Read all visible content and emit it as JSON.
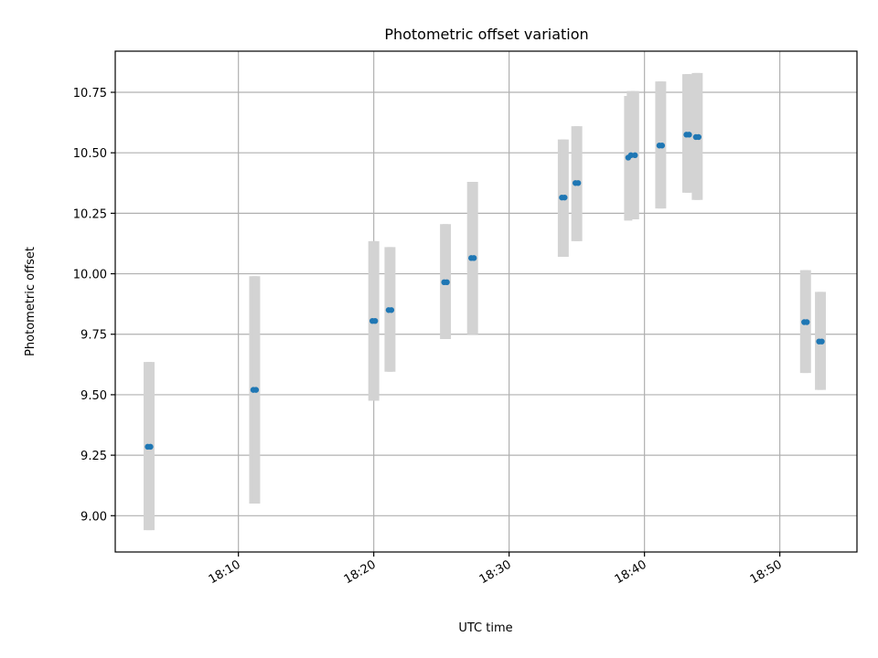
{
  "chart_data": {
    "type": "scatter",
    "title": "Photometric offset variation",
    "xlabel": "UTC time",
    "ylabel": "Photometric offset",
    "x_axis": {
      "scale": "time",
      "range": [
        "18:00:54",
        "18:55:42"
      ],
      "ticks": [
        "18:10",
        "18:20",
        "18:30",
        "18:40",
        "18:50"
      ]
    },
    "y_axis": {
      "range": [
        8.85,
        10.92
      ],
      "ticks": [
        9.0,
        9.25,
        9.5,
        9.75,
        10.0,
        10.25,
        10.5,
        10.75
      ],
      "tick_labels": [
        "9.00",
        "9.25",
        "9.50",
        "9.75",
        "10.00",
        "10.25",
        "10.50",
        "10.75"
      ]
    },
    "grid": true,
    "colors": {
      "point": "#1f77b4",
      "errorbar": "#d3d3d3",
      "grid": "#b0b0b0"
    },
    "points": [
      {
        "x": "18:03:18",
        "y": 9.285,
        "yerr_low": 8.94,
        "yerr_high": 9.635
      },
      {
        "x": "18:03:30",
        "y": 9.285,
        "yerr_low": 8.94,
        "yerr_high": 9.635
      },
      {
        "x": "18:11:06",
        "y": 9.52,
        "yerr_low": 9.05,
        "yerr_high": 9.99
      },
      {
        "x": "18:11:18",
        "y": 9.52,
        "yerr_low": 9.05,
        "yerr_high": 9.99
      },
      {
        "x": "18:19:54",
        "y": 9.805,
        "yerr_low": 9.475,
        "yerr_high": 10.135
      },
      {
        "x": "18:20:06",
        "y": 9.805,
        "yerr_low": 9.475,
        "yerr_high": 10.135
      },
      {
        "x": "18:21:06",
        "y": 9.85,
        "yerr_low": 9.595,
        "yerr_high": 10.11
      },
      {
        "x": "18:21:18",
        "y": 9.85,
        "yerr_low": 9.595,
        "yerr_high": 10.11
      },
      {
        "x": "18:25:12",
        "y": 9.965,
        "yerr_low": 9.73,
        "yerr_high": 10.205
      },
      {
        "x": "18:25:24",
        "y": 9.965,
        "yerr_low": 9.73,
        "yerr_high": 10.205
      },
      {
        "x": "18:27:12",
        "y": 10.065,
        "yerr_low": 9.75,
        "yerr_high": 10.38
      },
      {
        "x": "18:27:24",
        "y": 10.065,
        "yerr_low": 9.75,
        "yerr_high": 10.38
      },
      {
        "x": "18:33:54",
        "y": 10.315,
        "yerr_low": 10.07,
        "yerr_high": 10.555
      },
      {
        "x": "18:34:06",
        "y": 10.315,
        "yerr_low": 10.07,
        "yerr_high": 10.555
      },
      {
        "x": "18:34:54",
        "y": 10.375,
        "yerr_low": 10.135,
        "yerr_high": 10.61
      },
      {
        "x": "18:35:06",
        "y": 10.375,
        "yerr_low": 10.135,
        "yerr_high": 10.61
      },
      {
        "x": "18:38:48",
        "y": 10.48,
        "yerr_low": 10.22,
        "yerr_high": 10.735
      },
      {
        "x": "18:39:00",
        "y": 10.49,
        "yerr_low": 10.225,
        "yerr_high": 10.755
      },
      {
        "x": "18:39:18",
        "y": 10.49,
        "yerr_low": 10.225,
        "yerr_high": 10.755
      },
      {
        "x": "18:41:06",
        "y": 10.53,
        "yerr_low": 10.27,
        "yerr_high": 10.795
      },
      {
        "x": "18:41:18",
        "y": 10.53,
        "yerr_low": 10.27,
        "yerr_high": 10.795
      },
      {
        "x": "18:43:06",
        "y": 10.575,
        "yerr_low": 10.335,
        "yerr_high": 10.825
      },
      {
        "x": "18:43:18",
        "y": 10.575,
        "yerr_low": 10.335,
        "yerr_high": 10.825
      },
      {
        "x": "18:43:48",
        "y": 10.565,
        "yerr_low": 10.305,
        "yerr_high": 10.83
      },
      {
        "x": "18:44:00",
        "y": 10.565,
        "yerr_low": 10.305,
        "yerr_high": 10.83
      },
      {
        "x": "18:51:48",
        "y": 9.8,
        "yerr_low": 9.59,
        "yerr_high": 10.015
      },
      {
        "x": "18:52:00",
        "y": 9.8,
        "yerr_low": 9.59,
        "yerr_high": 10.015
      },
      {
        "x": "18:52:54",
        "y": 9.72,
        "yerr_low": 9.52,
        "yerr_high": 9.925
      },
      {
        "x": "18:53:06",
        "y": 9.72,
        "yerr_low": 9.52,
        "yerr_high": 9.925
      }
    ]
  }
}
